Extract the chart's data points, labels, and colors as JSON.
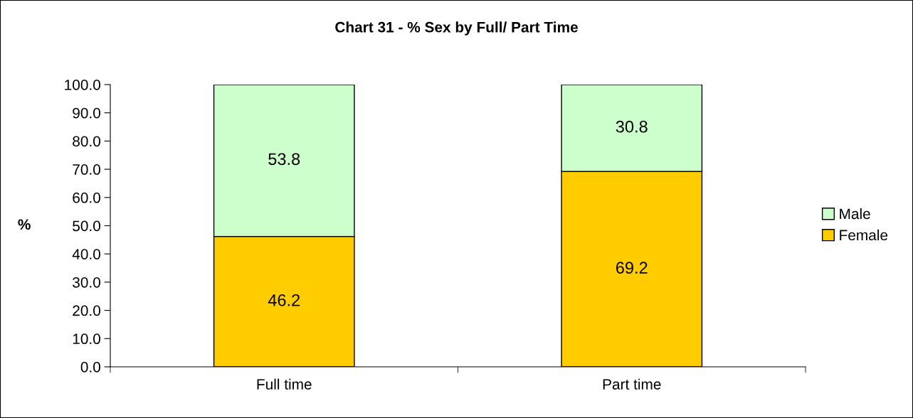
{
  "chart_data": {
    "type": "bar",
    "title": "Chart 31 - % Sex by Full/ Part Time",
    "ylabel": "%",
    "categories": [
      "Full time",
      "Part time"
    ],
    "stacked": true,
    "series": [
      {
        "name": "Female",
        "color": "#ffcc00",
        "values": [
          46.2,
          69.2
        ]
      },
      {
        "name": "Male",
        "color": "#ccffcc",
        "values": [
          53.8,
          30.8
        ]
      }
    ],
    "ylim": [
      0,
      100
    ],
    "yticks": [
      {
        "value": 0,
        "label": "0.0"
      },
      {
        "value": 10,
        "label": "10.0"
      },
      {
        "value": 20,
        "label": "20.0"
      },
      {
        "value": 30,
        "label": "30.0"
      },
      {
        "value": 40,
        "label": "40.0"
      },
      {
        "value": 50,
        "label": "50.0"
      },
      {
        "value": 60,
        "label": "60.0"
      },
      {
        "value": 70,
        "label": "70.0"
      },
      {
        "value": 80,
        "label": "80.0"
      },
      {
        "value": 90,
        "label": "90.0"
      },
      {
        "value": 100,
        "label": "100.0"
      }
    ],
    "data_labels": true,
    "legend": "right",
    "grid": false
  }
}
